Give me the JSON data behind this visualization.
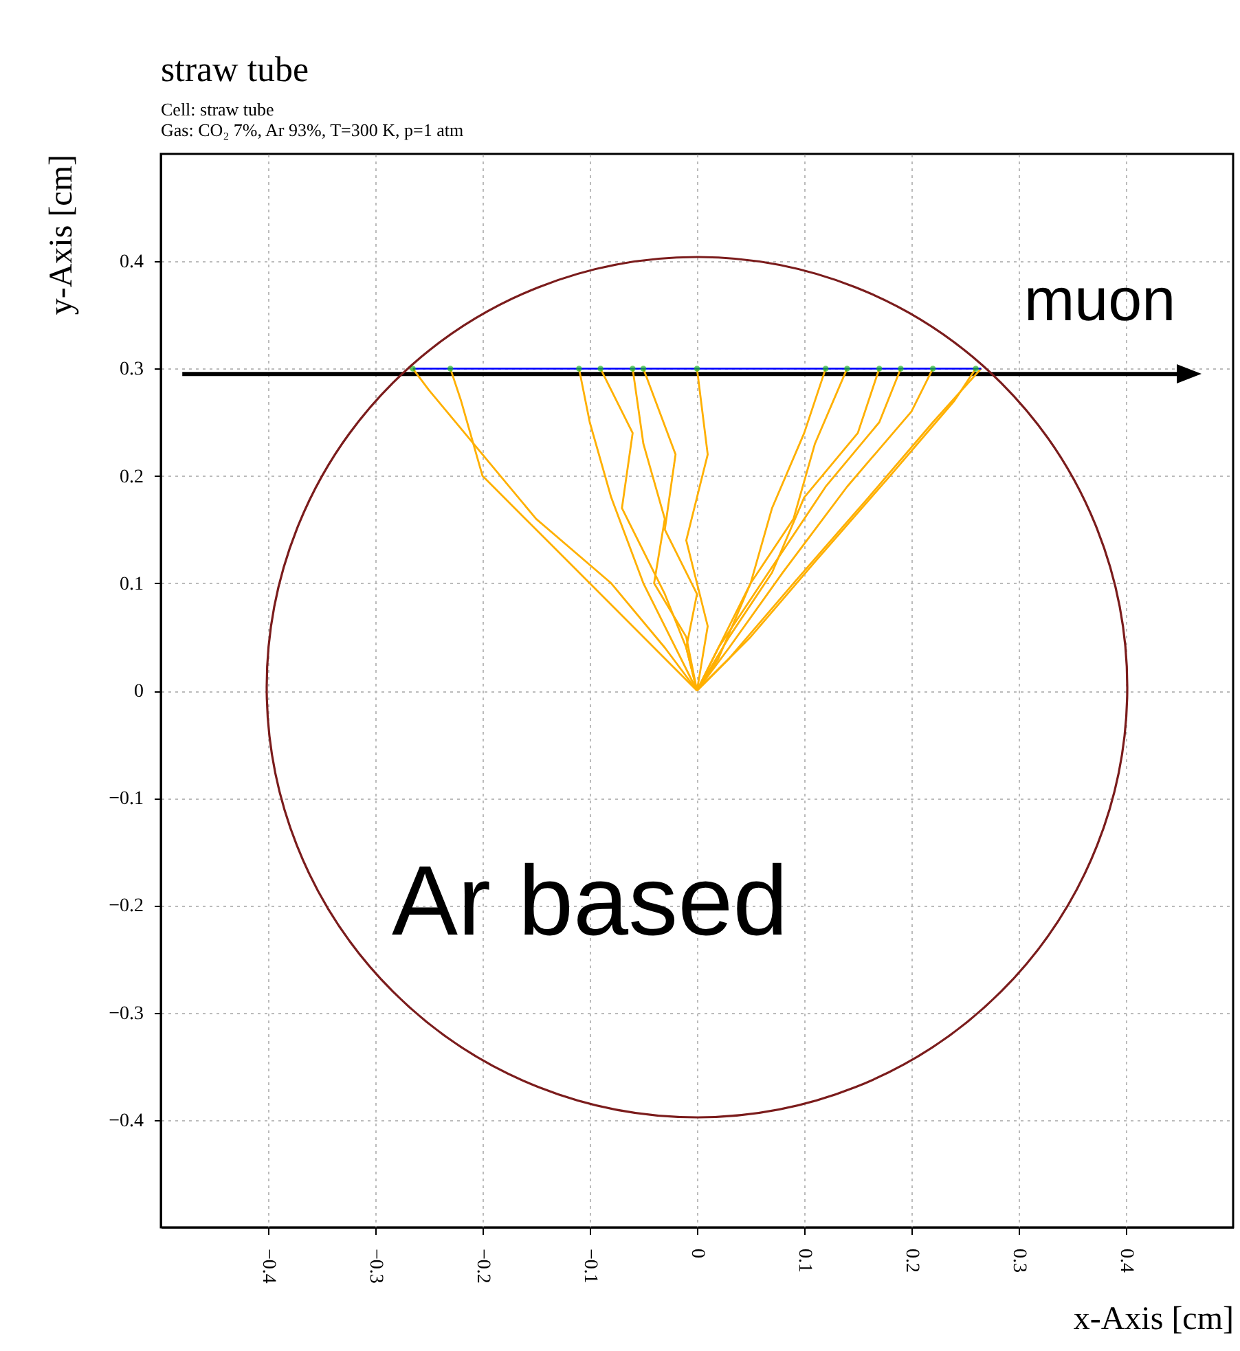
{
  "chart_data": {
    "type": "line",
    "title": "straw tube",
    "subtitle": "Cell: straw tube\nGas: CO₂ 7%, Ar 93%, T=300 K, p=1 atm",
    "xlabel": "x-Axis [cm]",
    "ylabel": "y-Axis [cm]",
    "annotations": [
      "Ar based"
    ],
    "ref_lines": [
      {
        "axis": "y",
        "value": 0.295,
        "label": "muon",
        "color": "#000000"
      }
    ],
    "xlim": [
      -0.5,
      0.5
    ],
    "ylim": [
      -0.5,
      0.5
    ],
    "xticks": [
      -0.4,
      -0.3,
      -0.2,
      -0.1,
      0,
      0.1,
      0.2,
      0.3,
      0.4
    ],
    "yticks": [
      -0.4,
      -0.3,
      -0.2,
      -0.1,
      0,
      0.1,
      0.2,
      0.3,
      0.4
    ],
    "grid": true,
    "marker": "none",
    "line_style": "solid",
    "series": [
      {
        "color": "#ffb000",
        "x": [
          -0.265,
          -0.25,
          -0.2,
          -0.15,
          -0.08,
          -0.03,
          0
        ],
        "values": [
          0.3,
          0.28,
          0.22,
          0.16,
          0.1,
          0.04,
          0
        ]
      },
      {
        "color": "#ffb000",
        "x": [
          -0.23,
          -0.22,
          -0.2,
          -0.14,
          -0.08,
          -0.03,
          0
        ],
        "values": [
          0.3,
          0.27,
          0.2,
          0.14,
          0.08,
          0.03,
          0
        ]
      },
      {
        "color": "#ffb000",
        "x": [
          -0.11,
          -0.1,
          -0.08,
          -0.05,
          -0.02,
          0
        ],
        "values": [
          0.3,
          0.25,
          0.18,
          0.1,
          0.04,
          0
        ]
      },
      {
        "color": "#ffb000",
        "x": [
          -0.09,
          -0.06,
          -0.07,
          -0.03,
          -0.01,
          0
        ],
        "values": [
          0.3,
          0.24,
          0.17,
          0.09,
          0.04,
          0
        ]
      },
      {
        "color": "#ffb000",
        "x": [
          -0.06,
          -0.05,
          -0.03,
          -0.04,
          -0.01,
          0
        ],
        "values": [
          0.3,
          0.23,
          0.16,
          0.1,
          0.05,
          0
        ]
      },
      {
        "color": "#ffb000",
        "x": [
          -0.05,
          -0.02,
          -0.03,
          0,
          -0.01,
          0
        ],
        "values": [
          0.3,
          0.22,
          0.15,
          0.09,
          0.04,
          0
        ]
      },
      {
        "color": "#ffb000",
        "x": [
          0,
          0.01,
          -0.01,
          0.01,
          0
        ],
        "values": [
          0.3,
          0.22,
          0.14,
          0.06,
          0
        ]
      },
      {
        "color": "#ffb000",
        "x": [
          0.12,
          0.1,
          0.07,
          0.05,
          0.02,
          0
        ],
        "values": [
          0.3,
          0.24,
          0.17,
          0.1,
          0.04,
          0
        ]
      },
      {
        "color": "#ffb000",
        "x": [
          0.14,
          0.11,
          0.09,
          0.05,
          0.02,
          0
        ],
        "values": [
          0.3,
          0.23,
          0.16,
          0.1,
          0.03,
          0
        ]
      },
      {
        "color": "#ffb000",
        "x": [
          0.17,
          0.15,
          0.1,
          0.07,
          0.03,
          0
        ],
        "values": [
          0.3,
          0.24,
          0.18,
          0.11,
          0.05,
          0
        ]
      },
      {
        "color": "#ffb000",
        "x": [
          0.19,
          0.17,
          0.12,
          0.06,
          0.02,
          0
        ],
        "values": [
          0.3,
          0.25,
          0.19,
          0.1,
          0.04,
          0
        ]
      },
      {
        "color": "#ffb000",
        "x": [
          0.22,
          0.2,
          0.14,
          0.08,
          0.03,
          0
        ],
        "values": [
          0.3,
          0.26,
          0.19,
          0.11,
          0.04,
          0
        ]
      },
      {
        "color": "#ffb000",
        "x": [
          0.26,
          0.24,
          0.18,
          0.11,
          0.05,
          0
        ],
        "values": [
          0.3,
          0.27,
          0.2,
          0.12,
          0.05,
          0
        ]
      },
      {
        "color": "#ffb000",
        "x": [
          0.265,
          0.22,
          0.16,
          0.09,
          0.03,
          0
        ],
        "values": [
          0.3,
          0.25,
          0.18,
          0.1,
          0.03,
          0
        ]
      },
      {
        "color": "#0000ff",
        "x": [
          -0.265,
          0.265
        ],
        "values": [
          0.3,
          0.3
        ]
      },
      {
        "type": "scatter",
        "marker": "circle",
        "color": "#22bb22",
        "x": [
          -0.265,
          -0.23,
          -0.11,
          -0.09,
          -0.06,
          -0.05,
          0,
          0.12,
          0.14,
          0.17,
          0.19,
          0.22,
          0.26
        ],
        "values": [
          0.3,
          0.3,
          0.3,
          0.3,
          0.3,
          0.3,
          0.3,
          0.3,
          0.3,
          0.3,
          0.3,
          0.3,
          0.3
        ]
      }
    ]
  }
}
